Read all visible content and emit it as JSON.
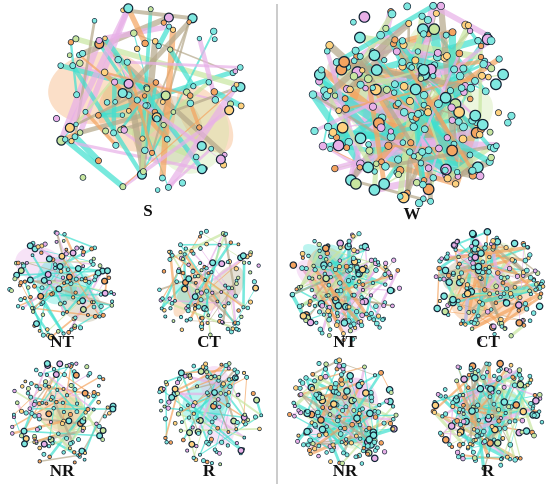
{
  "panels": [
    {
      "label": "S",
      "subpanels": [
        {
          "label": "NT"
        },
        {
          "label": "CT"
        },
        {
          "label": "NR"
        },
        {
          "label": "R"
        }
      ]
    },
    {
      "label": "W",
      "subpanels": [
        {
          "label": "NT"
        },
        {
          "label": "CT"
        },
        {
          "label": "NR"
        },
        {
          "label": "R"
        }
      ]
    }
  ]
}
